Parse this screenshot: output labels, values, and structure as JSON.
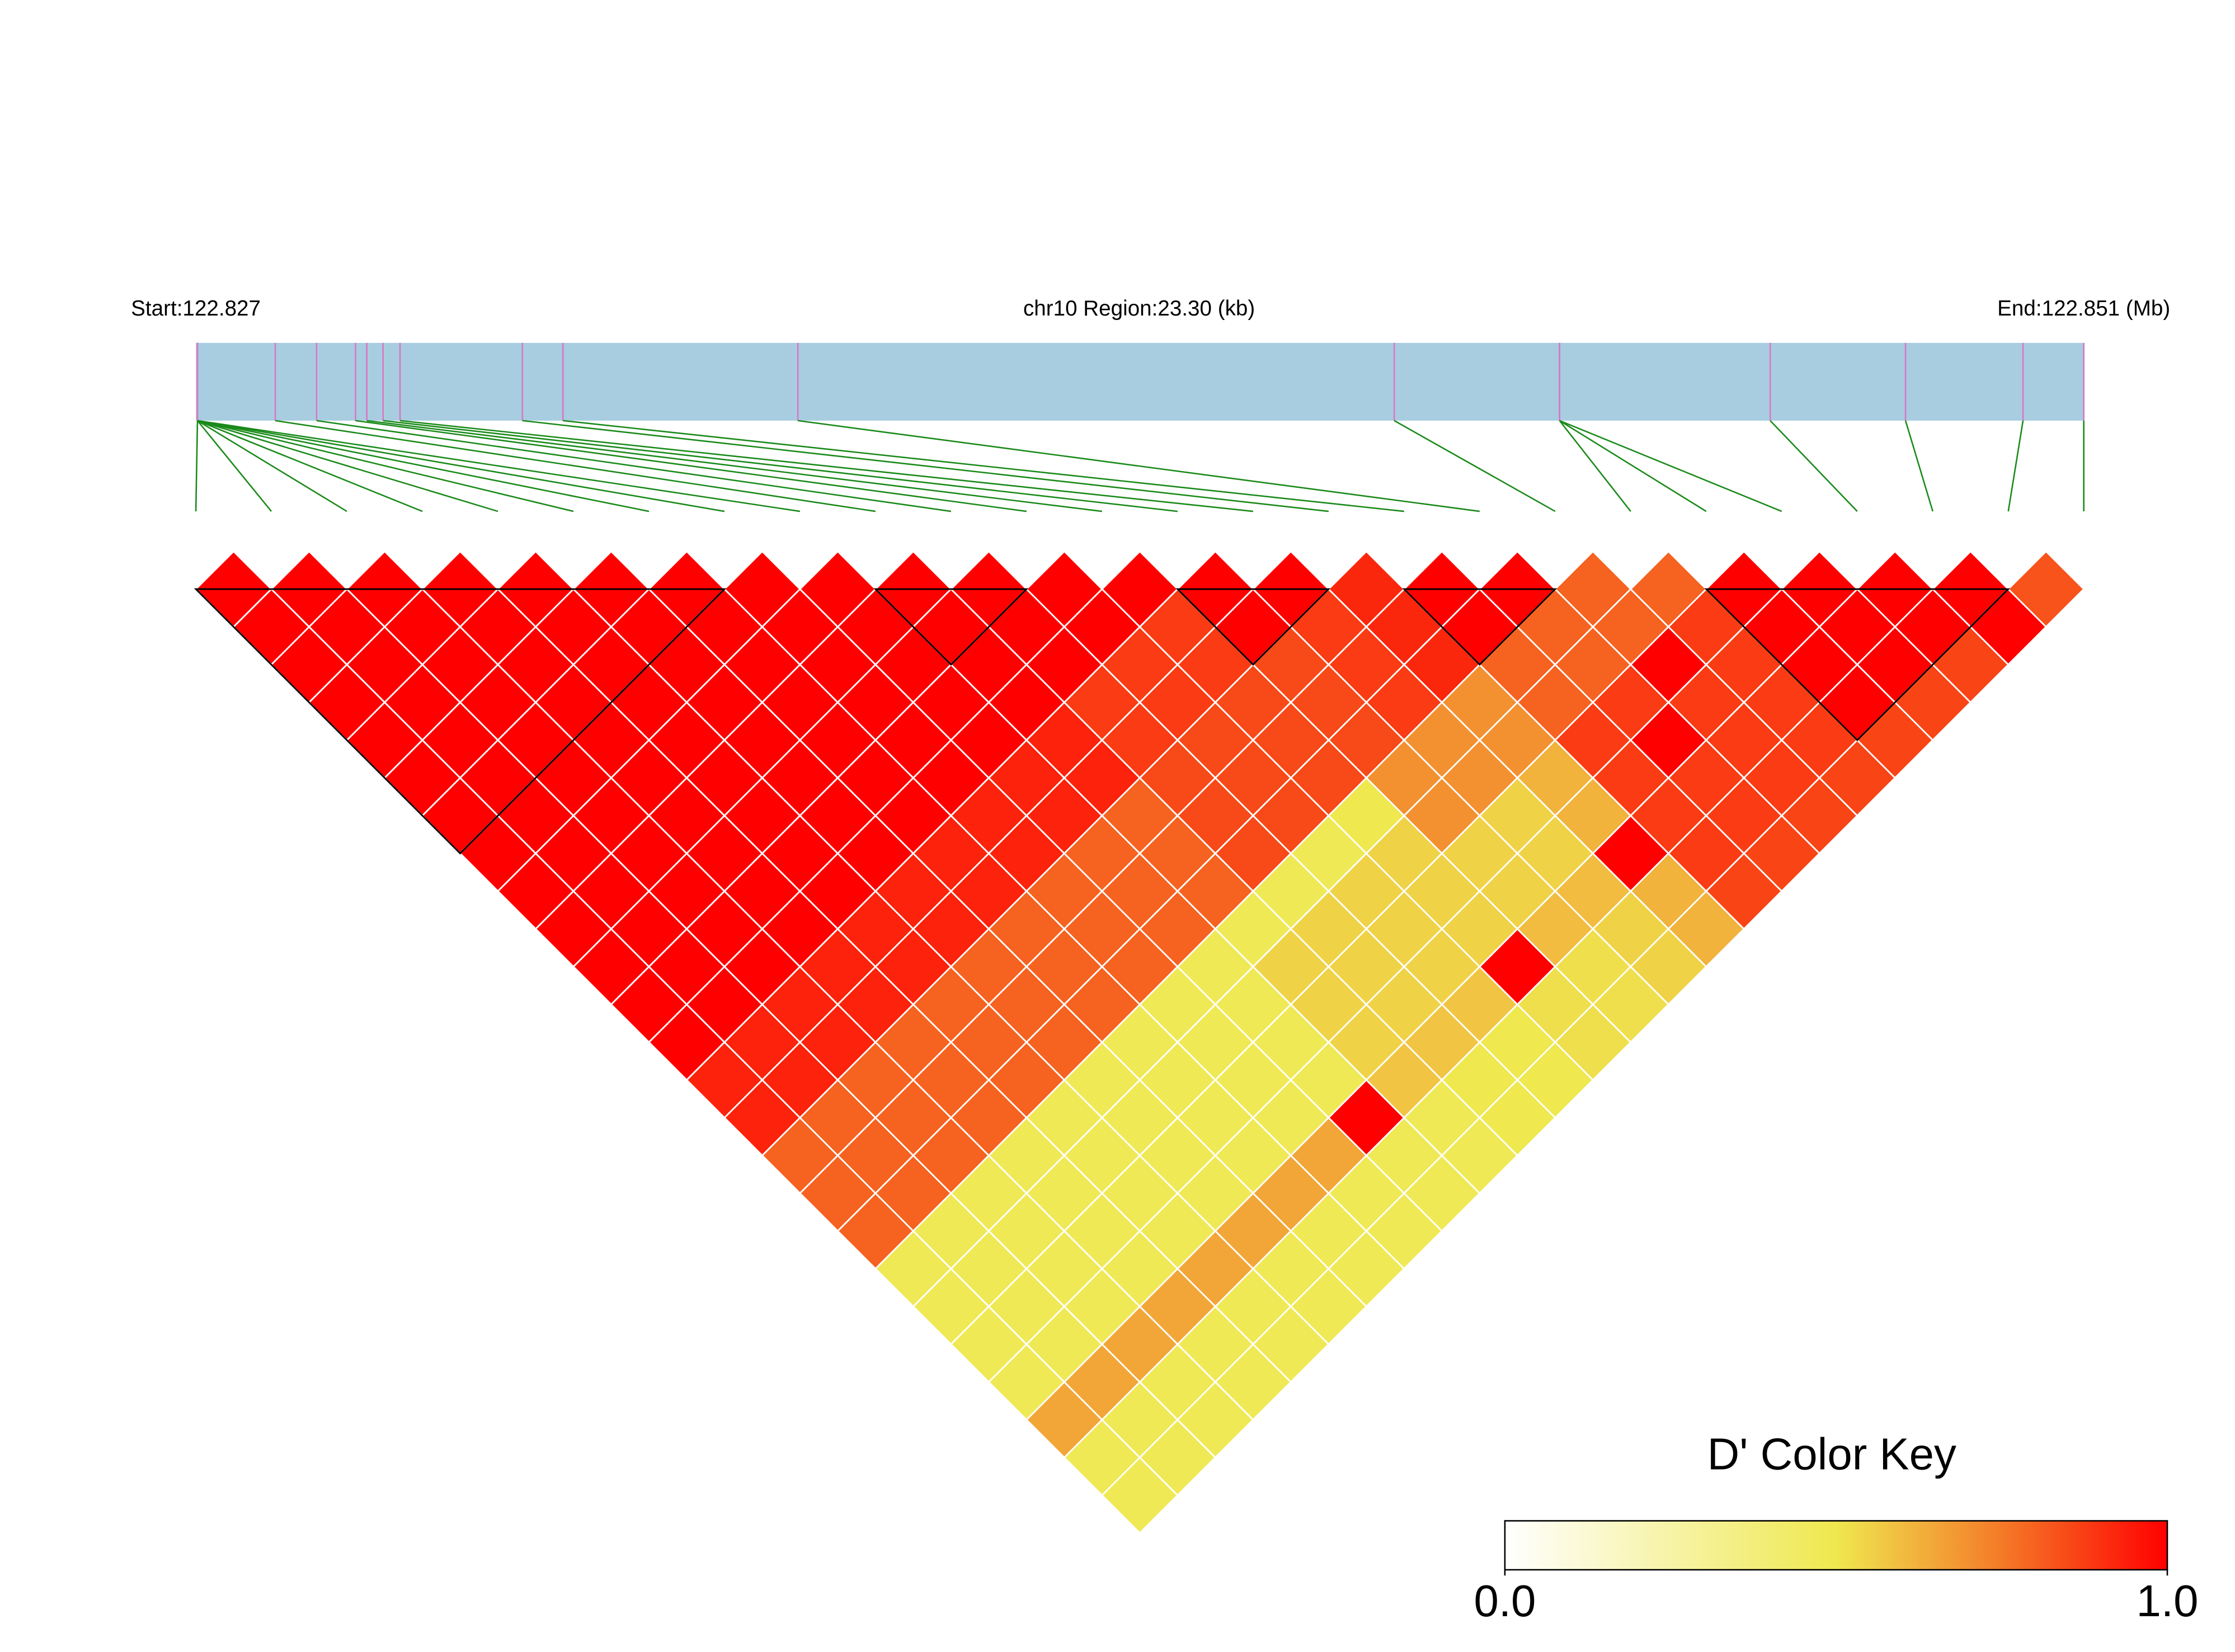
{
  "chart_data": {
    "type": "ld-heatmap",
    "title": "chr10 Region:23.30 (kb)",
    "start_label": "Start:122.827",
    "end_label": "End:122.851 (Mb)",
    "xlim": [
      122.8275,
      122.8508
    ],
    "snp_positions": [
      122.82752,
      122.82752,
      122.82752,
      122.82752,
      122.82752,
      122.82752,
      122.82752,
      122.82752,
      122.82752,
      122.82848,
      122.82899,
      122.82947,
      122.82961,
      122.82981,
      122.83002,
      122.83153,
      122.83203,
      122.83493,
      122.84229,
      122.84433,
      122.84433,
      122.84433,
      122.84693,
      122.8486,
      122.85005,
      122.8508
    ],
    "dprime": [
      [
        1,
        1,
        1,
        1,
        1,
        1,
        1,
        1,
        1,
        1,
        1,
        1,
        1,
        0.93,
        0.93,
        0.8,
        0.8,
        0.8,
        0.48,
        0.48,
        0.48,
        0.48,
        0.65,
        0.48,
        0.48
      ],
      [
        1,
        1,
        1,
        1,
        1,
        1,
        1,
        1,
        1,
        1,
        1,
        1,
        0.93,
        0.93,
        0.8,
        0.8,
        0.8,
        0.48,
        0.48,
        0.48,
        0.48,
        0.65,
        0.48,
        0.48
      ],
      [
        1,
        1,
        1,
        1,
        1,
        1,
        1,
        1,
        1,
        1,
        1,
        0.93,
        0.93,
        0.8,
        0.8,
        0.8,
        0.48,
        0.48,
        0.48,
        0.48,
        0.65,
        0.48,
        0.48
      ],
      [
        1,
        1,
        1,
        1,
        1,
        1,
        1,
        1,
        1,
        1,
        0.93,
        0.93,
        0.8,
        0.8,
        0.8,
        0.48,
        0.48,
        0.48,
        0.48,
        0.65,
        0.48,
        0.48
      ],
      [
        1,
        1,
        1,
        1,
        1,
        1,
        1,
        1,
        1,
        0.93,
        0.93,
        0.8,
        0.8,
        0.8,
        0.48,
        0.48,
        0.48,
        0.48,
        0.65,
        0.48,
        0.48
      ],
      [
        1,
        1,
        1,
        1,
        1,
        1,
        1,
        1,
        0.93,
        0.93,
        0.8,
        0.8,
        0.8,
        0.48,
        0.48,
        0.48,
        0.48,
        0.65,
        0.48,
        0.48
      ],
      [
        1,
        1,
        1,
        1,
        1,
        1,
        1,
        0.93,
        0.93,
        0.8,
        0.8,
        0.8,
        0.48,
        0.48,
        0.48,
        0.48,
        0.65,
        0.48,
        0.48
      ],
      [
        1,
        1,
        1,
        1,
        1,
        1,
        0.93,
        0.93,
        0.8,
        0.8,
        0.8,
        0.48,
        0.48,
        0.48,
        0.48,
        0.65,
        0.48,
        0.48
      ],
      [
        1,
        1,
        1,
        1,
        1,
        0.93,
        0.93,
        0.8,
        0.8,
        0.8,
        0.48,
        0.48,
        0.48,
        0.48,
        1,
        0.48,
        0.48
      ],
      [
        1,
        1,
        1,
        1,
        0.93,
        0.93,
        0.8,
        0.8,
        0.8,
        0.48,
        0.55,
        0.55,
        0.55,
        0.58,
        0.48,
        0.48
      ],
      [
        1,
        1,
        1,
        0.88,
        0.88,
        0.85,
        0.85,
        0.85,
        0.48,
        0.55,
        0.55,
        0.55,
        0.58,
        0.5,
        0.5
      ],
      [
        1,
        1,
        0.88,
        0.88,
        0.85,
        0.85,
        0.85,
        0.48,
        0.55,
        0.55,
        0.55,
        0.58,
        0.5,
        0.5
      ],
      [
        1,
        0.88,
        0.88,
        0.85,
        0.85,
        0.85,
        0.5,
        0.55,
        0.55,
        0.55,
        1,
        0.52,
        0.52
      ],
      [
        1,
        1,
        0.85,
        0.85,
        0.85,
        0.7,
        0.7,
        0.55,
        0.55,
        0.6,
        0.52,
        0.52
      ],
      [
        1,
        0.88,
        0.88,
        0.88,
        0.7,
        0.7,
        0.55,
        0.55,
        0.6,
        0.55,
        0.55
      ],
      [
        0.92,
        0.92,
        0.92,
        0.7,
        0.7,
        0.62,
        0.62,
        1,
        0.62,
        0.62
      ],
      [
        1,
        1,
        0.8,
        0.8,
        0.88,
        0.88,
        0.88,
        0.88,
        0.86
      ],
      [
        1,
        0.8,
        0.8,
        0.88,
        1,
        0.88,
        0.88,
        0.86
      ],
      [
        0.8,
        0.8,
        1,
        0.88,
        0.88,
        0.88,
        0.86
      ],
      [
        0.8,
        0.88,
        0.88,
        0.88,
        0.88,
        0.86
      ],
      [
        1,
        1,
        1,
        1,
        0.86
      ],
      [
        1,
        1,
        1,
        0.86
      ],
      [
        1,
        1,
        0.86
      ],
      [
        1,
        1
      ],
      [
        0.83
      ]
    ],
    "blocks": [
      [
        0,
        7
      ],
      [
        9,
        11
      ],
      [
        13,
        15
      ],
      [
        16,
        18
      ],
      [
        20,
        24
      ]
    ],
    "color_stops": [
      [
        0,
        "#ffffff"
      ],
      [
        0.5,
        "#efe84f"
      ],
      [
        0.75,
        "#f47a28"
      ],
      [
        1,
        "#ff0000"
      ]
    ],
    "legend": {
      "title": "D' Color Key",
      "ticks": [
        {
          "value": 0,
          "label": "0.0"
        },
        {
          "value": 1,
          "label": "1.0"
        }
      ]
    },
    "track_color": "#a8cde0",
    "snp_line_color": "#d877c4",
    "connector_color": "#1a8a1a"
  }
}
